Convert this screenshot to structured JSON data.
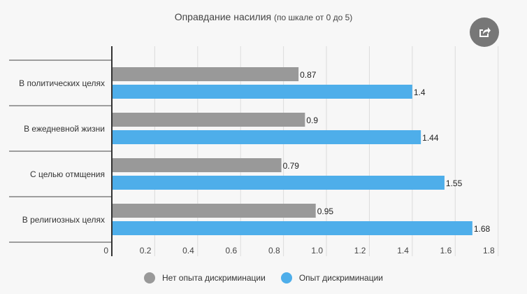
{
  "chart_data": {
    "type": "bar",
    "orientation": "horizontal",
    "title": "Оправдание насилия",
    "subtitle": "(по шкале от 0 до 5)",
    "categories": [
      "В политических целях",
      "В ежедневной жизни",
      "С целью отмщения",
      "В религиозных целях"
    ],
    "series": [
      {
        "name": "Нет опыта дискриминации",
        "color": "#999999",
        "values": [
          0.87,
          0.9,
          0.79,
          0.95
        ]
      },
      {
        "name": "Опыт дискриминации",
        "color": "#4eaeea",
        "values": [
          1.4,
          1.44,
          1.55,
          1.68
        ]
      }
    ],
    "xlim": [
      0,
      1.8
    ],
    "xticks": [
      "0",
      "0.2",
      "0.4",
      "0.6",
      "0.8",
      "1.0",
      "1.2",
      "1.4",
      "1.6",
      "1.8"
    ],
    "grid": true,
    "legend_position": "bottom"
  },
  "share_icon": "share-icon"
}
